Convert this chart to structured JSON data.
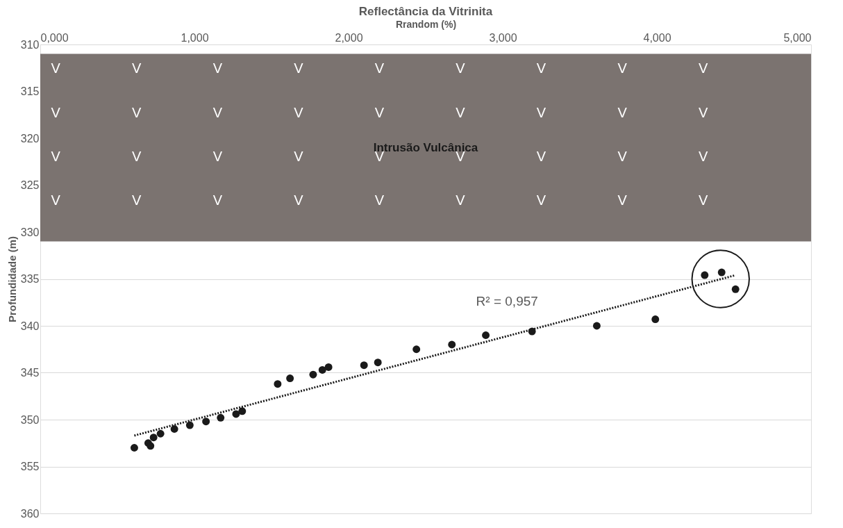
{
  "chart_data": {
    "type": "scatter",
    "title": "Reflectância da Vitrinita",
    "xlabel": "Rrandom (%)",
    "ylabel": "Profundidade (m)",
    "xlim": [
      0,
      5
    ],
    "xticks": [
      {
        "value": 0,
        "label": "0,000"
      },
      {
        "value": 1,
        "label": "1,000"
      },
      {
        "value": 2,
        "label": "2,000"
      },
      {
        "value": 3,
        "label": "3,000"
      },
      {
        "value": 4,
        "label": "4,000"
      },
      {
        "value": 5,
        "label": "5,000"
      }
    ],
    "ylim": [
      360,
      310
    ],
    "yticks": [
      310,
      315,
      320,
      325,
      330,
      335,
      340,
      345,
      350,
      355,
      360
    ],
    "grid": "y",
    "series": [
      {
        "marker": "circle",
        "color": "#1a1a1a",
        "x": [
          0.61,
          0.7,
          0.715,
          0.735,
          0.78,
          0.87,
          0.97,
          1.075,
          1.17,
          1.27,
          1.31,
          1.54,
          1.62,
          1.77,
          1.83,
          1.87,
          2.1,
          2.19,
          2.44,
          2.67,
          2.89,
          3.19,
          3.61,
          3.99,
          4.31,
          4.42,
          4.51
        ],
        "values": [
          353.0,
          352.5,
          352.8,
          351.9,
          351.5,
          351.0,
          350.6,
          350.2,
          349.8,
          349.4,
          349.1,
          346.2,
          345.6,
          345.2,
          344.7,
          344.4,
          344.2,
          343.9,
          342.5,
          342.0,
          341.0,
          340.6,
          340.0,
          339.3,
          334.6,
          334.3,
          336.1
        ]
      },
      {
        "type": "line",
        "color": "#1a1a1a",
        "line_style": "dotted",
        "x": [
          0.61,
          4.51
        ],
        "values": [
          351.7,
          334.6
        ]
      }
    ],
    "bands": [
      {
        "axis": "y",
        "from": 311,
        "to": 331,
        "label": "Intrusão Vulcânica",
        "color": "#7b7370"
      }
    ],
    "annotations": [
      "R² = 0,957",
      "V",
      "V",
      "V",
      "V",
      "V",
      "V",
      "V",
      "V",
      "V",
      "V",
      "V",
      "V",
      "V",
      "V",
      "V",
      "V",
      "V",
      "V",
      "V",
      "V",
      "V",
      "V",
      "V",
      "V",
      "V",
      "V",
      "V",
      "V",
      "V",
      "V",
      "V",
      "V",
      "V",
      "V",
      "V",
      "V"
    ]
  }
}
